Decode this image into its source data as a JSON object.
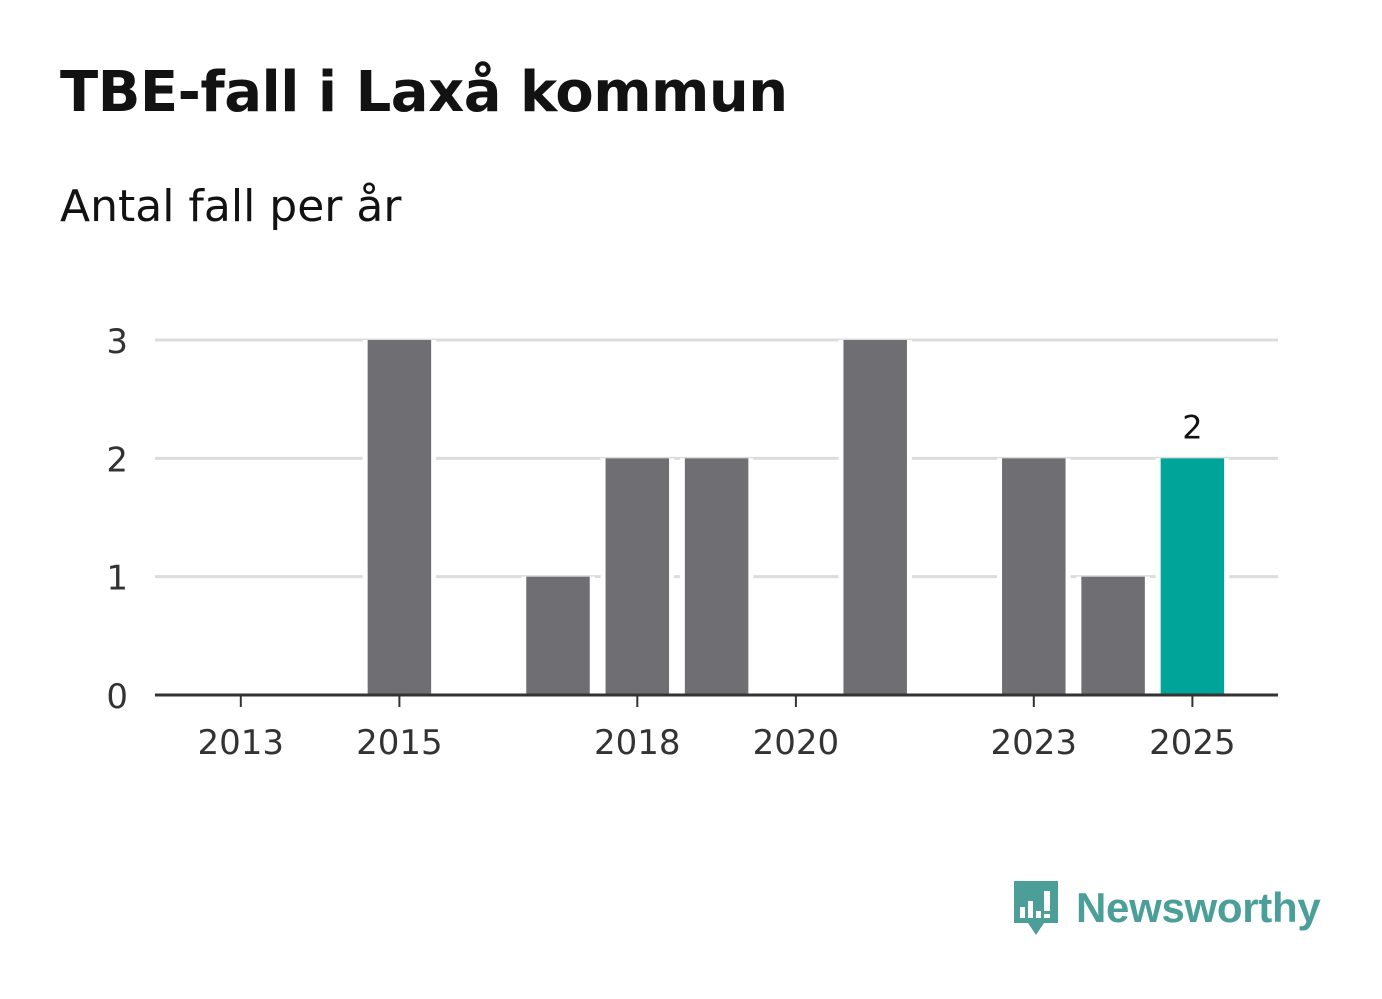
{
  "header": {
    "title": "TBE-fall i Laxå kommun",
    "subtitle": "Antal fall per år"
  },
  "brand": {
    "name": "Newsworthy",
    "color": "#4b9f98"
  },
  "colors": {
    "bar": "#6f6e73",
    "highlight": "#00a499",
    "grid": "#dcdcdc",
    "axis": "#333333"
  },
  "chart_data": {
    "type": "bar",
    "title": "TBE-fall i Laxå kommun",
    "subtitle": "Antal fall per år",
    "xlabel": "",
    "ylabel": "",
    "categories": [
      "2012",
      "2013",
      "2014",
      "2015",
      "2016",
      "2017",
      "2018",
      "2019",
      "2020",
      "2021",
      "2022",
      "2023",
      "2024",
      "2025"
    ],
    "values": [
      0,
      0,
      0,
      3,
      0,
      1,
      2,
      2,
      0,
      3,
      0,
      2,
      1,
      2
    ],
    "x_tick_labels": [
      "2013",
      "2015",
      "2018",
      "2020",
      "2023",
      "2025"
    ],
    "y_ticks": [
      0,
      1,
      2,
      3
    ],
    "ylim": [
      0,
      3
    ],
    "grid": true,
    "highlight_category": "2025",
    "data_labels": [
      {
        "category": "2025",
        "text": "2"
      }
    ]
  }
}
